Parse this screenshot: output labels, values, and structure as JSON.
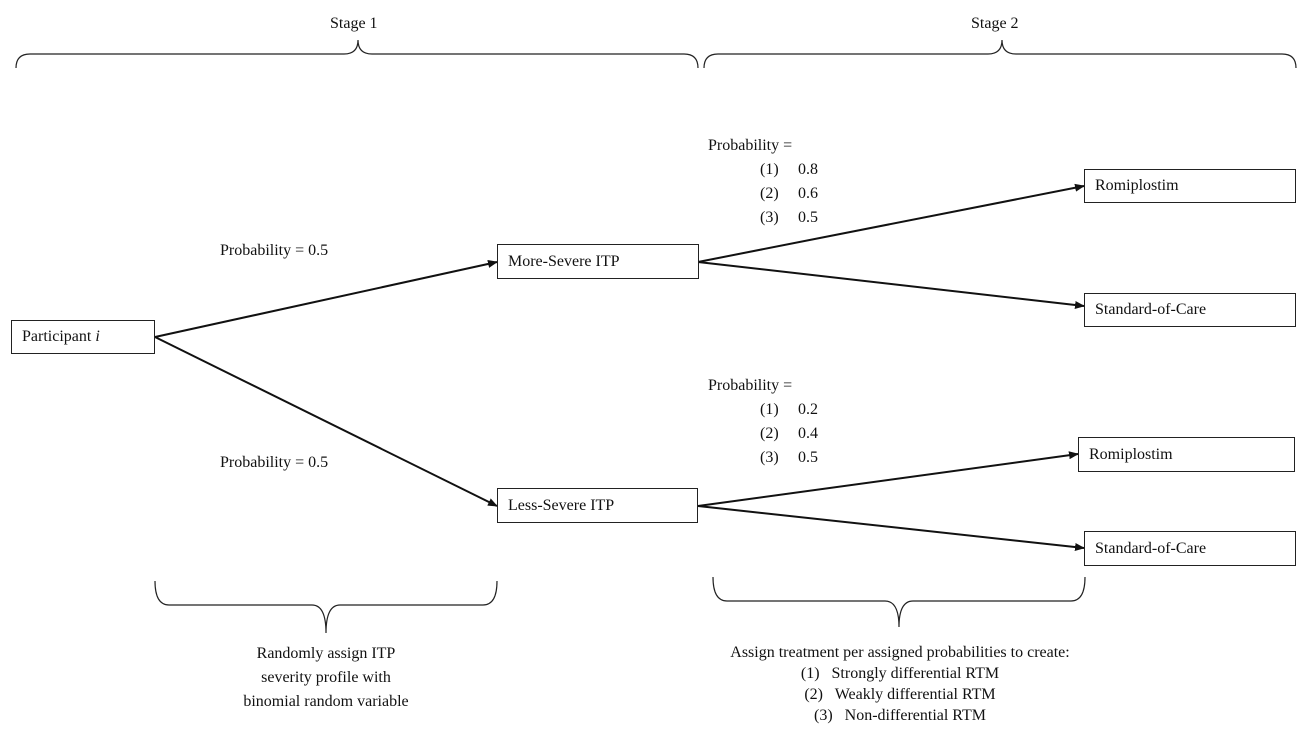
{
  "stages": {
    "stage1": "Stage 1",
    "stage2": "Stage 2"
  },
  "nodes": {
    "participant": {
      "label": "Participant ",
      "italic": "i"
    },
    "more_severe": "More-Severe ITP",
    "less_severe": "Less-Severe ITP",
    "romiplostim_top": "Romiplostim",
    "soc_top": "Standard-of-Care",
    "romiplostim_bottom": "Romiplostim",
    "soc_bottom": "Standard-of-Care"
  },
  "probabilities": {
    "upper_branch": "Probability = 0.5",
    "lower_branch": "Probability = 0.5",
    "more_severe_header": "Probability =",
    "more_severe_values": [
      {
        "num": "(1)",
        "val": "0.8"
      },
      {
        "num": "(2)",
        "val": "0.6"
      },
      {
        "num": "(3)",
        "val": "0.5"
      }
    ],
    "less_severe_header": "Probability =",
    "less_severe_values": [
      {
        "num": "(1)",
        "val": "0.2"
      },
      {
        "num": "(2)",
        "val": "0.4"
      },
      {
        "num": "(3)",
        "val": "0.5"
      }
    ]
  },
  "notes": {
    "stage1_lines": [
      "Randomly assign ITP",
      "severity profile with",
      "binomial random variable"
    ],
    "stage2_intro": "Assign treatment per assigned probabilities to create:",
    "stage2_items": [
      "(1)   Strongly differential RTM",
      "(2)   Weakly differential RTM",
      "(3)   Non-differential RTM"
    ]
  }
}
